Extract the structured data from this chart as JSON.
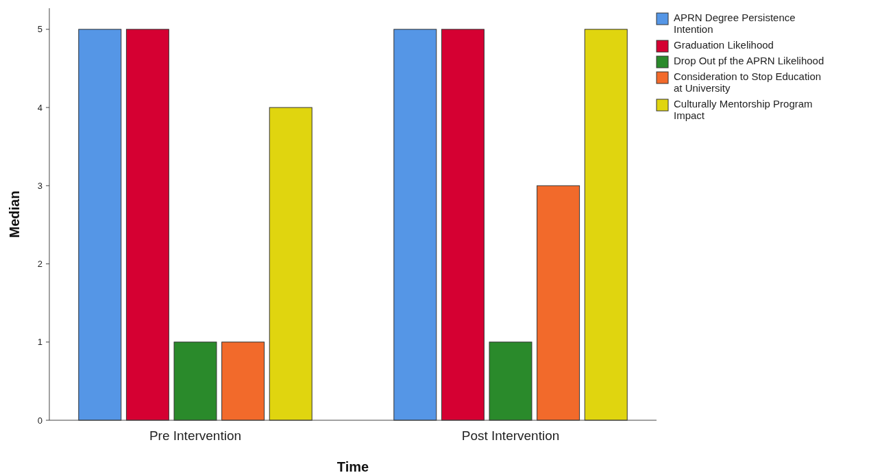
{
  "chart_data": {
    "type": "bar",
    "xlabel": "Time",
    "ylabel": "Median",
    "categories": [
      "Pre Intervention",
      "Post Intervention"
    ],
    "series": [
      {
        "name": "APRN Degree Persistence Intention",
        "color": "#5596e6",
        "values": [
          5,
          5
        ]
      },
      {
        "name": "Graduation Likelihood",
        "color": "#d50032",
        "values": [
          5,
          5
        ]
      },
      {
        "name": "Drop Out pf the APRN Likelihood",
        "color": "#2a8a2b",
        "values": [
          1,
          1
        ]
      },
      {
        "name": "Consideration to Stop Education at University",
        "color": "#f26a2b",
        "values": [
          1,
          3
        ]
      },
      {
        "name": "Culturally Mentorship Program Impact",
        "color": "#e0d50f",
        "values": [
          4,
          5
        ]
      }
    ],
    "ylim": [
      0,
      5.27
    ],
    "yticks": [
      0,
      1,
      2,
      3,
      4,
      5
    ],
    "grid": false,
    "legend": "top right"
  }
}
